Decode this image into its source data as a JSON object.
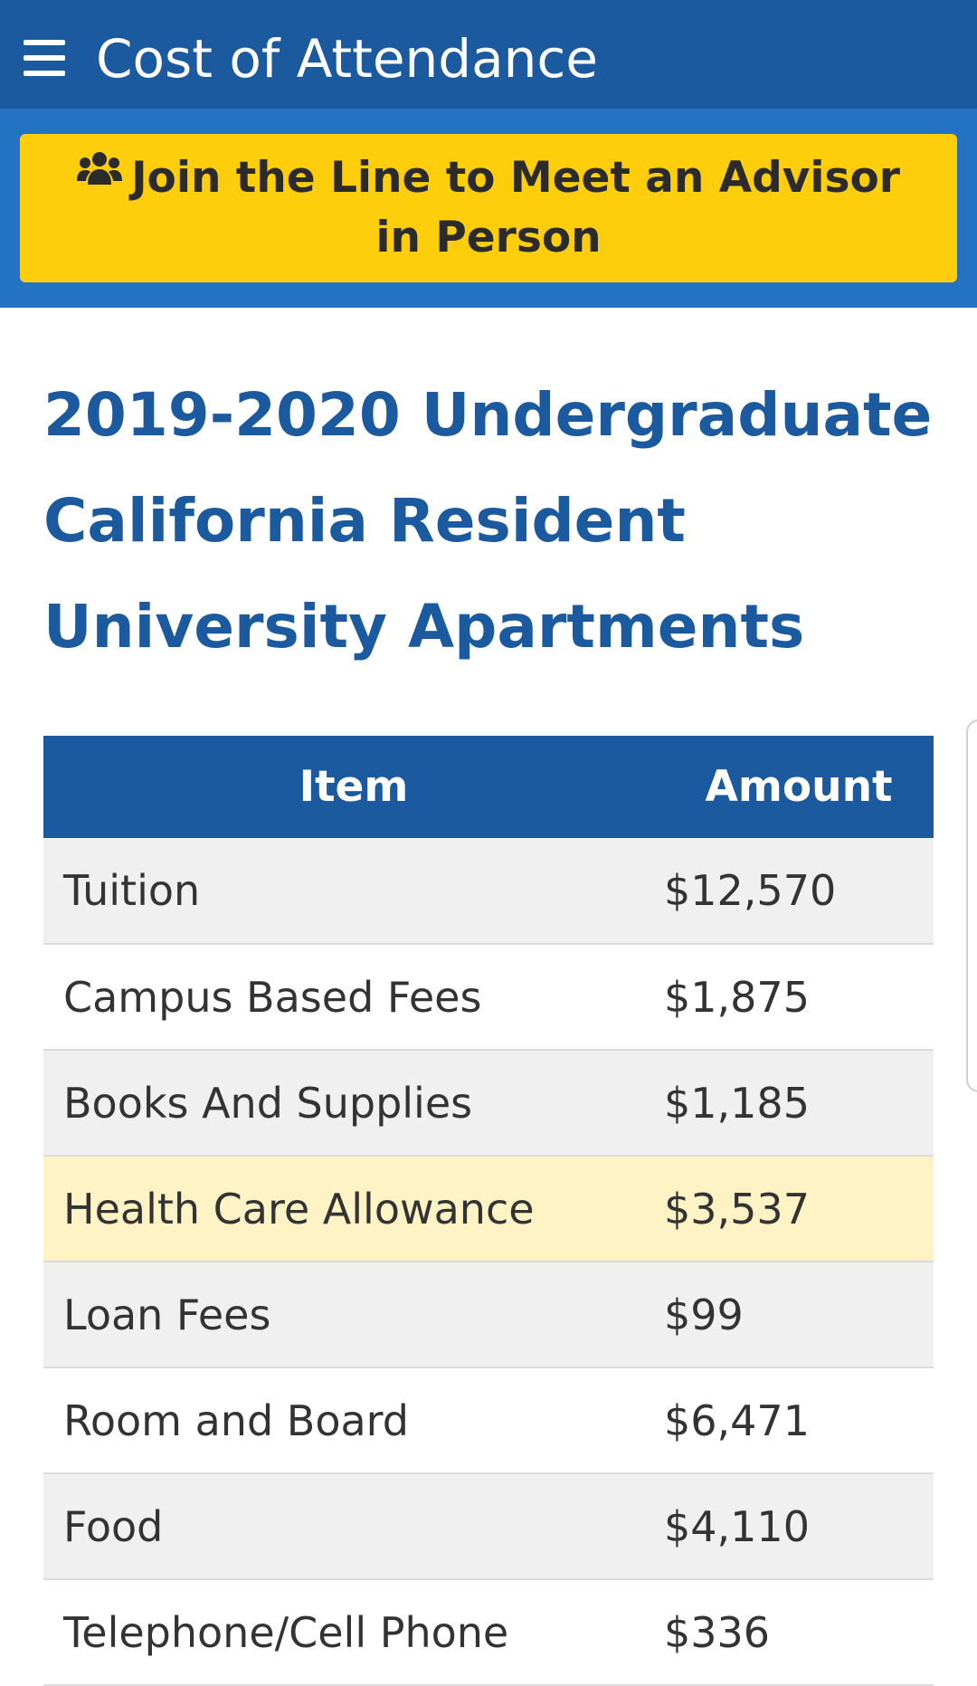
{
  "app_bar": {
    "menu_icon": "hamburger-menu-icon",
    "title": "Cost of Attendance"
  },
  "banner": {
    "icon": "users-group-icon",
    "label": "Join the Line to Meet an Advisor in Person",
    "bg_color": "#fece0d"
  },
  "page": {
    "heading": "2019-2020 Undergraduate California Resident University Apartments"
  },
  "table": {
    "headers": {
      "item": "Item",
      "amount": "Amount"
    },
    "rows": [
      {
        "item": "Tuition",
        "amount": "$12,570"
      },
      {
        "item": "Campus Based Fees",
        "amount": "$1,875"
      },
      {
        "item": "Books And Supplies",
        "amount": "$1,185"
      },
      {
        "item": "Health Care Allowance",
        "amount": "$3,537"
      },
      {
        "item": "Loan Fees",
        "amount": "$99"
      },
      {
        "item": "Room and Board",
        "amount": "$6,471"
      },
      {
        "item": "Food",
        "amount": "$4,110"
      },
      {
        "item": "Telephone/Cell Phone",
        "amount": "$336"
      }
    ]
  },
  "colors": {
    "primary": "#1c5aa0",
    "banner_strip": "#2372c4",
    "highlight_row": "#fdf3c4",
    "stripe_row": "#f0f0f0"
  }
}
